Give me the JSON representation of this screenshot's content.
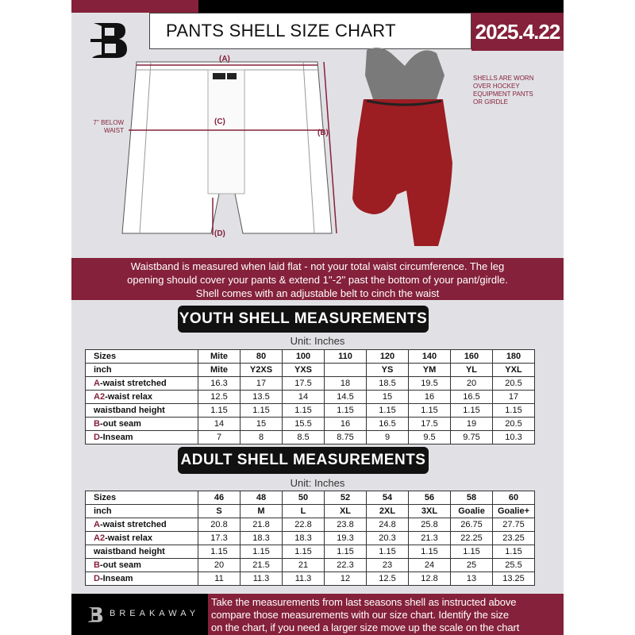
{
  "header": {
    "title": "PANTS SHELL SIZE CHART",
    "date": "2025.4.22"
  },
  "diagram": {
    "label_a": "(A)",
    "label_b": "(B)",
    "label_c": "(C)",
    "label_d": "(D)",
    "below_waist_note": "7'' BELOW WAIST",
    "shell_note": "SHELLS ARE WORN OVER HOCKEY EQUIPMENT PANTS OR GIRDLE"
  },
  "info_band": [
    "Waistband is measured when laid flat - not your total waist circumference. The leg",
    "opening should cover your pants & extend 1''-2'' past the bottom of your pant/girdle.",
    "Shell comes with an adjustable belt to cinch the waist"
  ],
  "youth": {
    "title": "YOUTH SHELL MEASUREMENTS",
    "unit": "Unit: Inches",
    "rows": [
      {
        "prefix": "",
        "label": "Sizes",
        "values": [
          "Mite",
          "80",
          "100",
          "110",
          "120",
          "140",
          "160",
          "180"
        ]
      },
      {
        "prefix": "",
        "label": "inch",
        "values": [
          "Mite",
          "Y2XS",
          "YXS",
          "",
          "YS",
          "YM",
          "YL",
          "YXL"
        ]
      },
      {
        "prefix": "A",
        "label": "-waist stretched",
        "values": [
          "16.3",
          "17",
          "17.5",
          "18",
          "18.5",
          "19.5",
          "20",
          "20.5"
        ]
      },
      {
        "prefix": "A2",
        "label": "-waist relax",
        "values": [
          "12.5",
          "13.5",
          "14",
          "14.5",
          "15",
          "16",
          "16.5",
          "17"
        ]
      },
      {
        "prefix": "",
        "label": "waistband height",
        "values": [
          "1.15",
          "1.15",
          "1.15",
          "1.15",
          "1.15",
          "1.15",
          "1.15",
          "1.15"
        ]
      },
      {
        "prefix": "B",
        "label": "-out seam",
        "values": [
          "14",
          "15",
          "15.5",
          "16",
          "16.5",
          "17.5",
          "19",
          "20.5"
        ]
      },
      {
        "prefix": "D",
        "label": "-Inseam",
        "values": [
          "7",
          "8",
          "8.5",
          "8.75",
          "9",
          "9.5",
          "9.75",
          "10.3"
        ]
      }
    ]
  },
  "adult": {
    "title": "ADULT SHELL MEASUREMENTS",
    "unit": "Unit: Inches",
    "rows": [
      {
        "prefix": "",
        "label": "Sizes",
        "values": [
          "46",
          "48",
          "50",
          "52",
          "54",
          "56",
          "58",
          "60"
        ]
      },
      {
        "prefix": "",
        "label": "inch",
        "values": [
          "S",
          "M",
          "L",
          "XL",
          "2XL",
          "3XL",
          "Goalie",
          "Goalie+"
        ]
      },
      {
        "prefix": "A",
        "label": "-waist stretched",
        "values": [
          "20.8",
          "21.8",
          "22.8",
          "23.8",
          "24.8",
          "25.8",
          "26.75",
          "27.75"
        ]
      },
      {
        "prefix": "A2",
        "label": "-waist relax",
        "values": [
          "17.3",
          "18.3",
          "18.3",
          "19.3",
          "20.3",
          "21.3",
          "22.25",
          "23.25"
        ]
      },
      {
        "prefix": "",
        "label": "waistband height",
        "values": [
          "1.15",
          "1.15",
          "1.15",
          "1.15",
          "1.15",
          "1.15",
          "1.15",
          "1.15"
        ]
      },
      {
        "prefix": "B",
        "label": "-out seam",
        "values": [
          "20",
          "21.5",
          "21",
          "22.3",
          "23",
          "24",
          "25",
          "25.5"
        ]
      },
      {
        "prefix": "D",
        "label": "-Inseam",
        "values": [
          "11",
          "11.3",
          "11.3",
          "12",
          "12.5",
          "12.8",
          "13",
          "13.25"
        ]
      }
    ]
  },
  "footer": {
    "brand": "BREAKAWAY",
    "text": [
      "Take the measurements from last seasons shell as instructed above",
      "compare those measurements  with our size chart. Identify the size",
      "on the chart, if you need a larger size move up the scale on the chart"
    ]
  },
  "colors": {
    "accent": "#85213a",
    "dark": "#000000",
    "background": "#e1e1e5"
  }
}
